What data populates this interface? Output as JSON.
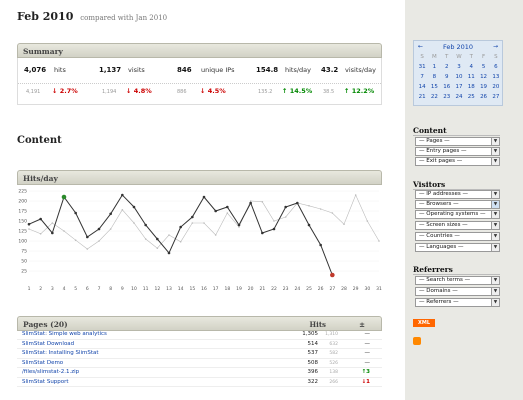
{
  "report": {
    "title": "Feb 2010",
    "compared": "compared with Jan 2010"
  },
  "summary": {
    "title": "Summary",
    "metrics": [
      {
        "value": "4,076",
        "label": "hits",
        "prev": "4,191",
        "change": "2.7%",
        "dir": "down"
      },
      {
        "value": "1,137",
        "label": "visits",
        "prev": "1,194",
        "change": "4.8%",
        "dir": "down"
      },
      {
        "value": "846",
        "label": "unique IPs",
        "prev": "886",
        "change": "4.5%",
        "dir": "down"
      },
      {
        "value": "154.8",
        "label": "hits/day",
        "prev": "135.2",
        "change": "14.5%",
        "dir": "up"
      },
      {
        "value": "43.2",
        "label": "visits/day",
        "prev": "38.5",
        "change": "12.2%",
        "dir": "up"
      }
    ]
  },
  "content": {
    "title": "Content"
  },
  "chart": {
    "panel_title": "Hits/day"
  },
  "chart_data": {
    "type": "line",
    "x": [
      1,
      2,
      3,
      4,
      5,
      6,
      7,
      8,
      9,
      10,
      11,
      12,
      13,
      14,
      15,
      16,
      17,
      18,
      19,
      20,
      21,
      22,
      23,
      24,
      25,
      26,
      27,
      28,
      29,
      30,
      31
    ],
    "ylim": [
      0,
      225
    ],
    "yticks": [
      25,
      50,
      75,
      100,
      125,
      150,
      175,
      200,
      225
    ],
    "series": [
      {
        "values": [
          142,
          155,
          120,
          210,
          170,
          110,
          130,
          168,
          215,
          185,
          140,
          105,
          70,
          135,
          160,
          210,
          175,
          185,
          140,
          195,
          120,
          130,
          185,
          195,
          140,
          90,
          15,
          null,
          null,
          null,
          null
        ],
        "color": "#333333",
        "style": "solid"
      },
      {
        "values": [
          130,
          118,
          145,
          125,
          102,
          80,
          100,
          130,
          178,
          145,
          105,
          82,
          115,
          98,
          145,
          145,
          115,
          170,
          135,
          200,
          198,
          150,
          160,
          195,
          188,
          180,
          170,
          142,
          215,
          150,
          100
        ],
        "color": "#bbbbbb",
        "style": "solid"
      }
    ],
    "markers": [
      {
        "x": 4,
        "y": 210,
        "color": "#2a8a2a"
      },
      {
        "x": 27,
        "y": 15,
        "color": "#c0392b"
      }
    ],
    "grid": true
  },
  "pages": {
    "title": "Pages (20)",
    "col_hits": "Hits",
    "col_change": "±",
    "rows": [
      {
        "title": "SlimStat: Simple web analytics",
        "hits": "1,305",
        "prev": "1,310",
        "change": "—",
        "dir": ""
      },
      {
        "title": "SlimStat Download",
        "hits": "514",
        "prev": "632",
        "change": "—",
        "dir": ""
      },
      {
        "title": "SlimStat: Installing SlimStat",
        "hits": "537",
        "prev": "582",
        "change": "—",
        "dir": ""
      },
      {
        "title": "SlimStat Demo",
        "hits": "508",
        "prev": "526",
        "change": "—",
        "dir": ""
      },
      {
        "title": "/files/slimstat-2.1.zip",
        "hits": "396",
        "prev": "138",
        "change": "↑3",
        "dir": "up"
      },
      {
        "title": "SlimStat Support",
        "hits": "322",
        "prev": "266",
        "change": "↓1",
        "dir": "down"
      }
    ]
  },
  "calendar": {
    "title": "Feb 2010",
    "prev": "←",
    "next": "→",
    "weekdays": [
      "S",
      "M",
      "T",
      "W",
      "T",
      "F",
      "S"
    ],
    "days": [
      "31",
      "1",
      "2",
      "3",
      "4",
      "5",
      "6",
      "7",
      "8",
      "9",
      "10",
      "11",
      "12",
      "13",
      "14",
      "15",
      "16",
      "17",
      "18",
      "19",
      "20",
      "21",
      "22",
      "23",
      "24",
      "25",
      "26",
      "27"
    ]
  },
  "sidebar": {
    "content_title": "Content",
    "content_filters": [
      "— Pages —",
      "— Entry pages —",
      "— Exit pages —"
    ],
    "visitors_title": "Visitors",
    "visitors_filters": [
      "— IP addresses —",
      "— Browsers —",
      "— Operating systems —",
      "— Screen sizes —",
      "— Countries —",
      "— Languages —"
    ],
    "referrers_title": "Referrers",
    "referrers_filters": [
      "— Search terms —",
      "— Domains —",
      "— Referrers —"
    ],
    "xml_label": "XML"
  }
}
